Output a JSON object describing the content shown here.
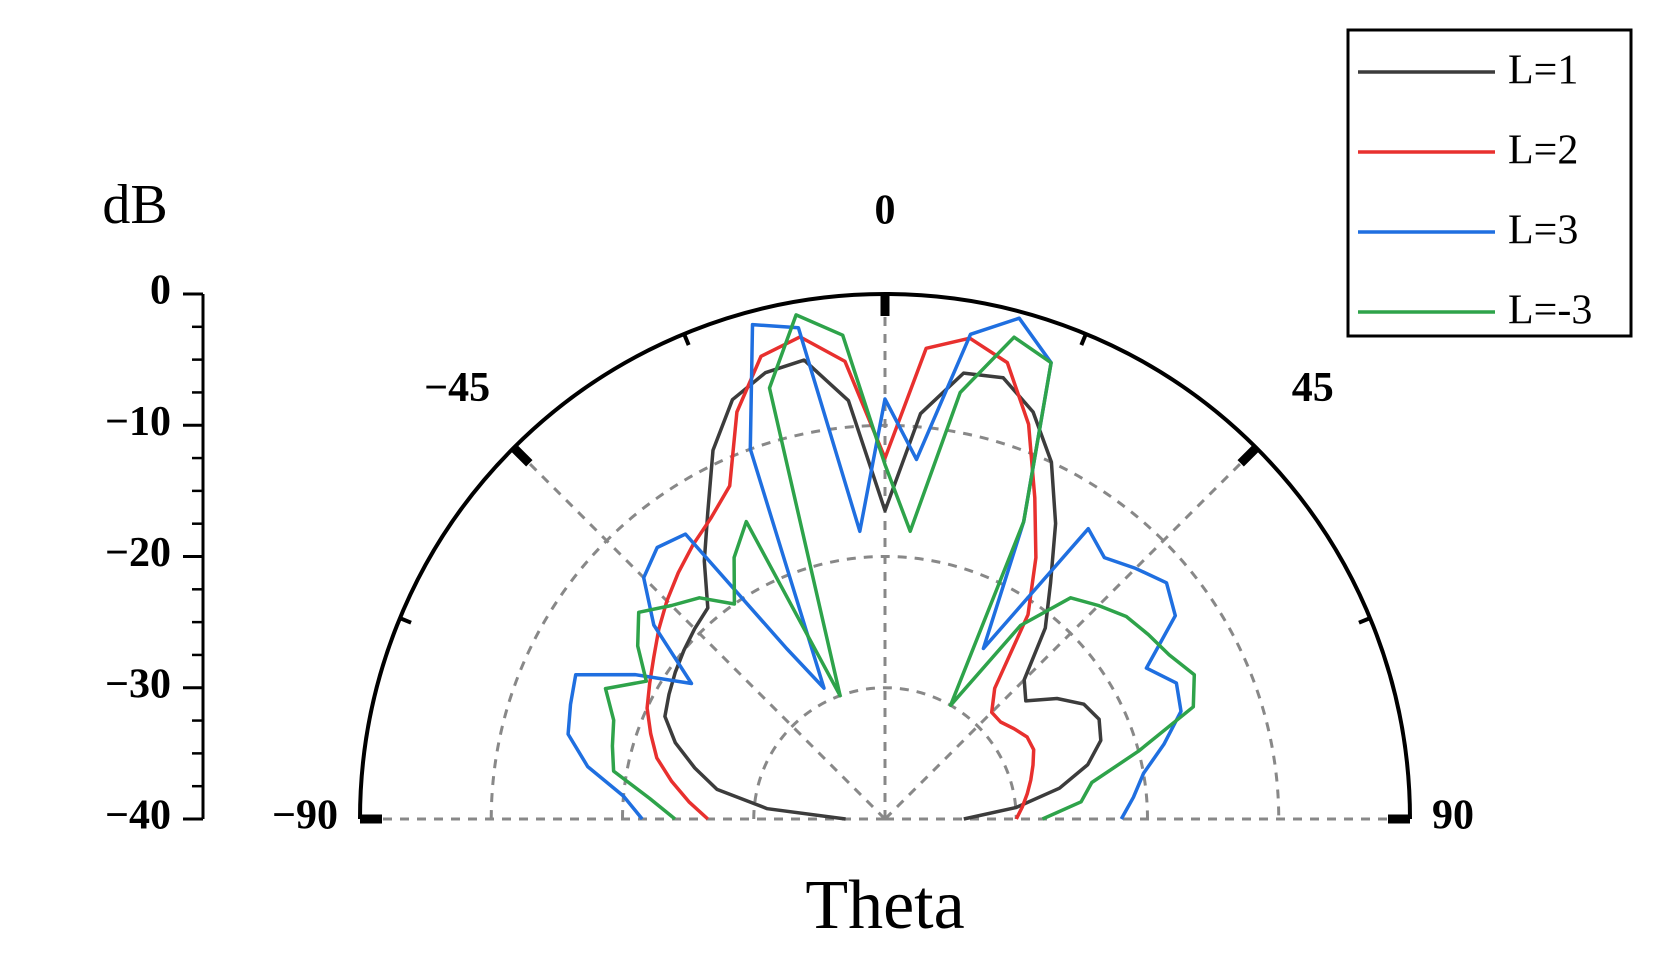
{
  "chart_data": {
    "type": "polar",
    "y_label": "dB",
    "x_label": "Theta",
    "x": [
      -90,
      -85,
      -80,
      -75,
      -70,
      -65,
      -60,
      -55,
      -50,
      -45,
      -40,
      -35,
      -30,
      -25,
      -20,
      -15,
      -10,
      -5,
      0,
      5,
      10,
      15,
      20,
      25,
      30,
      35,
      40,
      45,
      50,
      55,
      60,
      65,
      70,
      75,
      80,
      85,
      90
    ],
    "series": [
      {
        "name": "L=1",
        "color": "#3c3c3c",
        "values": [
          -37,
          -31,
          -27,
          -25,
          -23,
          -21.5,
          -21,
          -20.5,
          -20,
          -19.5,
          -19,
          -16,
          -13,
          -9,
          -6,
          -4.8,
          -4.5,
          -8,
          -16.5,
          -9,
          -5.5,
          -5.2,
          -7,
          -10,
          -14,
          -18,
          -21,
          -25,
          -26,
          -24,
          -22.5,
          -22,
          -22.5,
          -24,
          -26.5,
          -30,
          -34
        ]
      },
      {
        "name": "L=2",
        "color": "#e8302e",
        "values": [
          -26.5,
          -25,
          -23.5,
          -22,
          -21,
          -20,
          -19.3,
          -18.5,
          -17.5,
          -16.5,
          -15.5,
          -14.5,
          -13.5,
          -12,
          -7,
          -3.5,
          -2.7,
          -5,
          -12.5,
          -4,
          -2.8,
          -4,
          -8,
          -13,
          -17,
          -21,
          -27,
          -28.5,
          -28.5,
          -28,
          -27.5,
          -27.5,
          -28,
          -28.5,
          -29,
          -29.5,
          -30
        ]
      },
      {
        "name": "L=3",
        "color": "#1f6fe0",
        "values": [
          -21.5,
          -20,
          -17,
          -15,
          -14.5,
          -14,
          -18,
          -22,
          -17,
          -14,
          -13,
          -13.5,
          -25,
          -29,
          -10,
          -1,
          -2,
          -18,
          -8,
          -12.5,
          -2.5,
          -0.5,
          -3,
          -15,
          -25,
          -13,
          -14,
          -13,
          -12,
          -13,
          -17,
          -15.5,
          -16,
          -18,
          -20,
          -21,
          -22
        ]
      },
      {
        "name": "L=-3",
        "color": "#2ea34a",
        "values": [
          -24,
          -22,
          -19,
          -18.5,
          -18,
          -16.5,
          -19,
          -17,
          -15.5,
          -17,
          -18,
          -20,
          -17,
          -15,
          -30,
          -6,
          -1,
          -3,
          -13,
          -18,
          -7,
          -2,
          -3,
          -15,
          -30,
          -22,
          -18,
          -17,
          -16,
          -15.5,
          -15,
          -14,
          -15,
          -20,
          -24,
          -25,
          -28
        ]
      }
    ],
    "ylim": [
      -40,
      0
    ],
    "yticks": [
      0,
      {
        "value": -10,
        "label": "−10"
      },
      {
        "value": -20,
        "label": "−20"
      },
      {
        "value": -30,
        "label": "−30"
      },
      {
        "value": -40,
        "label": "−40"
      }
    ],
    "xlim": [
      -90,
      90
    ],
    "xticks": [
      {
        "value": -90,
        "label": "−90"
      },
      {
        "value": -45,
        "label": "−45"
      },
      0,
      45,
      90
    ],
    "grid": true,
    "legend": "upper right"
  }
}
